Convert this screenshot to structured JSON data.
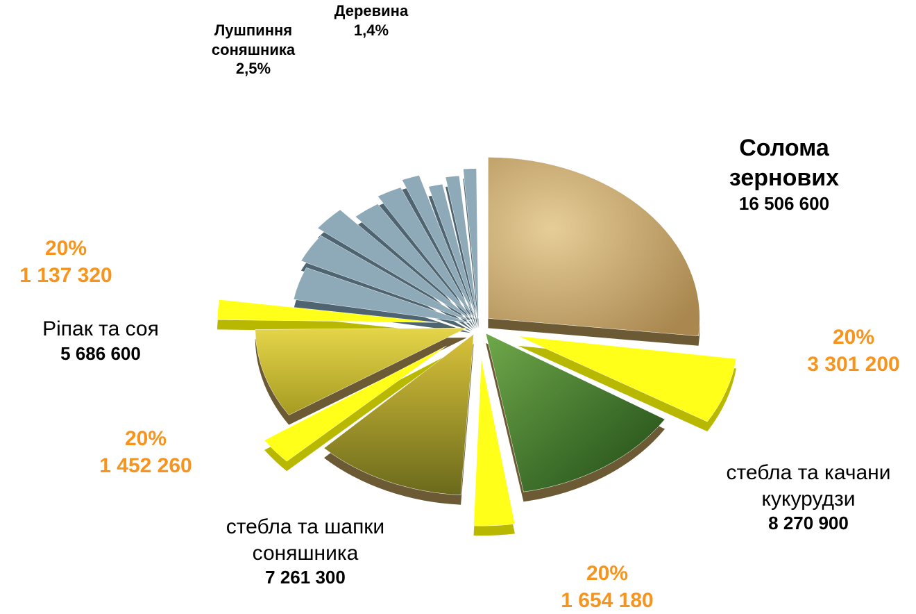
{
  "chart_data": {
    "type": "pie",
    "slices": [
      {
        "name": "Солома зернових",
        "value": 16506600,
        "value_label": "16 506 600",
        "color": "#c9a66b",
        "share": 20,
        "share_label": "20%",
        "share_value": 3301200,
        "share_value_label": "3 301 200"
      },
      {
        "name": "стебла та качани кукурудзи",
        "value": 8270900,
        "value_label": "8 270 900",
        "color": "#3f7a2a",
        "share": 20,
        "share_label": "20%",
        "share_value": 1654180,
        "share_value_label": "1 654 180"
      },
      {
        "name": "стебла та шапки соняшника",
        "value": 7261300,
        "value_label": "7 261 300",
        "color": "#b59a1e",
        "share": 20,
        "share_label": "20%",
        "share_value": 1452260,
        "share_value_label": "1 452 260"
      },
      {
        "name": "Ріпак та соя",
        "value": 5686600,
        "value_label": "5 686 600",
        "color": "#d8c21a",
        "share": 20,
        "share_label": "20%",
        "share_value": 1137320,
        "share_value_label": "1 137 320"
      }
    ],
    "share_color": "#ffff1a",
    "other_color": "#8ea9b8",
    "other_slices": [
      {
        "value": 4.2
      },
      {
        "value": 3.6
      },
      {
        "value": 3.0
      },
      {
        "value": 2.8
      },
      {
        "name": "Лушпиння соняшника",
        "value": 2.5,
        "value_label": "2,5%"
      },
      {
        "value": 1.8
      },
      {
        "value": 1.6
      },
      {
        "value": 1.5
      },
      {
        "name": "Деревина",
        "value": 1.4,
        "value_label": "1,4%"
      }
    ]
  }
}
